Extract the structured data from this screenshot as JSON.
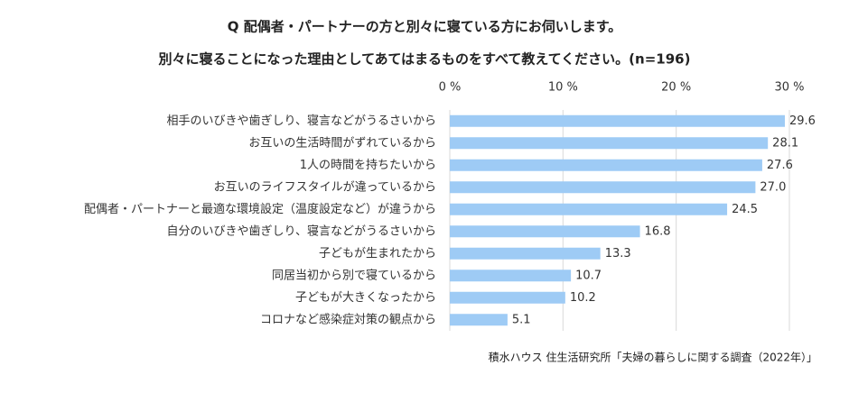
{
  "chart_data": {
    "type": "hbar",
    "title": "Q 配偶者・パートナーの方と別々に寝ている方にお伺いします。",
    "subtitle": "別々に寝ることになった理由としてあてはまるものをすべて教えてください。(n=196)",
    "categories": [
      "相手のいびきや歯ぎしり、寝言などがうるさいから",
      "お互いの生活時間がずれているから",
      "1人の時間を持ちたいから",
      "お互いのライフスタイルが違っているから",
      "配偶者・パートナーと最適な環境設定（温度設定など）が違うから",
      "自分のいびきや歯ぎしり、寝言などがうるさいから",
      "子どもが生まれたから",
      "同居当初から別で寝ているから",
      "子どもが大きくなったから",
      "コロナなど感染症対策の観点から"
    ],
    "values": [
      29.6,
      28.1,
      27.6,
      27.0,
      24.5,
      16.8,
      13.3,
      10.7,
      10.2,
      5.1
    ],
    "value_labels": [
      "29.6",
      "28.1",
      "27.6",
      "27.0",
      "24.5",
      "16.8",
      "13.3",
      "10.7",
      "10.2",
      "5.1"
    ],
    "color": "#9ecbf5",
    "xlim": [
      0,
      30
    ],
    "xticks": [
      {
        "value": 0,
        "label": "0 %"
      },
      {
        "value": 10,
        "label": "10 %"
      },
      {
        "value": 20,
        "label": "20 %"
      },
      {
        "value": 30,
        "label": "30 %"
      }
    ],
    "grid": true,
    "source": "積水ハウス 住生活研究所「夫婦の暮らしに関する調査（2022年）」"
  }
}
